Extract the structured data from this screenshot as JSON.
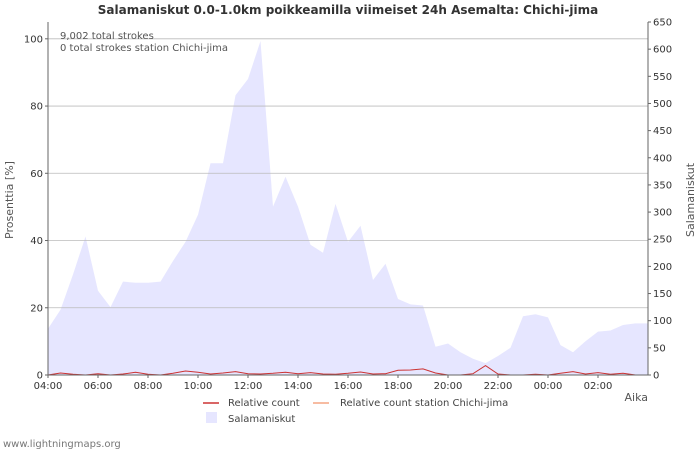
{
  "chart_data": {
    "type": "area",
    "title": "Salamaniskut 0.0-1.0km poikkeamilla viimeiset 24h Asemalta: Chichi-jima",
    "xlabel": "Aika",
    "ylabel_left": "Prosenttia   [%]",
    "ylabel_right": "Salamaniskut",
    "ylim_left": [
      0,
      105
    ],
    "ylim_right": [
      0,
      650
    ],
    "left_ticks": [
      0,
      20,
      40,
      60,
      80,
      100
    ],
    "right_ticks": [
      0,
      50,
      100,
      150,
      200,
      250,
      300,
      350,
      400,
      450,
      500,
      550,
      600,
      650
    ],
    "x_tick_labels": [
      "04:00",
      "06:00",
      "08:00",
      "10:00",
      "12:00",
      "14:00",
      "16:00",
      "18:00",
      "20:00",
      "22:00",
      "00:00",
      "02:00"
    ],
    "hours": [
      0,
      0.5,
      1,
      1.5,
      2,
      2.5,
      3,
      3.5,
      4,
      4.5,
      5,
      5.5,
      6,
      6.5,
      7,
      7.5,
      8,
      8.5,
      9,
      9.5,
      10,
      10.5,
      11,
      11.5,
      12,
      12.5,
      13,
      13.5,
      14,
      14.5,
      15,
      15.5,
      16,
      16.5,
      17,
      17.5,
      18,
      18.5,
      19,
      19.5,
      20,
      20.5,
      21,
      21.5,
      22,
      22.5,
      23,
      23.5
    ],
    "series": [
      {
        "name": "Salamaniskut",
        "axis": "right",
        "color": "#e6e6ff",
        "values": [
          85,
          120,
          185,
          255,
          155,
          125,
          172,
          170,
          170,
          172,
          210,
          245,
          295,
          390,
          390,
          515,
          545,
          615,
          310,
          365,
          310,
          240,
          225,
          315,
          245,
          275,
          175,
          205,
          140,
          130,
          128,
          52,
          58,
          42,
          30,
          22,
          35,
          50,
          108,
          112,
          106,
          55,
          42,
          62,
          80,
          82,
          92,
          95
        ]
      },
      {
        "name": "Relative count",
        "axis": "left",
        "color": "#cc3333",
        "values": [
          0,
          0.6,
          0.2,
          0,
          0.4,
          0,
          0.3,
          0.8,
          0.2,
          0,
          0.5,
          1.2,
          0.8,
          0.3,
          0.6,
          1.0,
          0.4,
          0.3,
          0.5,
          0.8,
          0.4,
          0.7,
          0.3,
          0.2,
          0.5,
          0.9,
          0.3,
          0.4,
          1.4,
          1.5,
          1.8,
          0.6,
          0,
          0,
          0.4,
          2.8,
          0.3,
          0,
          0,
          0.2,
          0,
          0.5,
          1.0,
          0.3,
          0.7,
          0.2,
          0.5,
          0
        ]
      },
      {
        "name": "Relative count station Chichi-jima",
        "axis": "left",
        "color": "#f4a582",
        "values": []
      }
    ],
    "annotations": [
      "9,002 total strokes",
      "0 total strokes station Chichi-jima"
    ]
  },
  "credit": "www.lightningmaps.org"
}
